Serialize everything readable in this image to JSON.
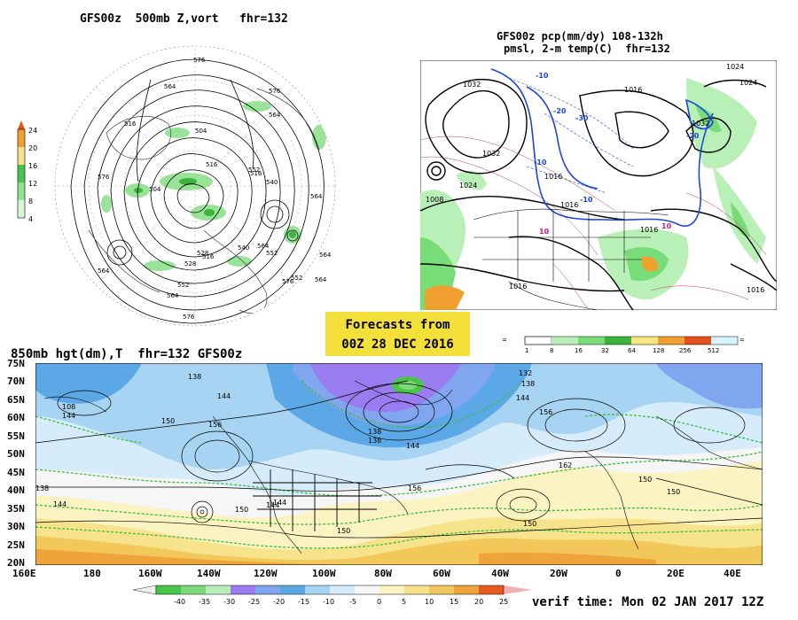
{
  "panel1": {
    "title": "GFS00z  500mb Z,vort   fhr=132",
    "colorbar_labels": [
      "24",
      "20",
      "16",
      "12",
      "8",
      "4"
    ],
    "colorbar_colors": [
      "#e6501e",
      "#f0a030",
      "#f7e08a",
      "#4cc24c",
      "#8fe08f",
      "#d8f5d8"
    ],
    "contour_labels": [
      "576",
      "564",
      "576",
      "516",
      "564",
      "576",
      "504",
      "516",
      "552",
      "540",
      "516",
      "504",
      "564",
      "564",
      "552",
      "564",
      "528",
      "528",
      "516",
      "540",
      "552",
      "564",
      "576",
      "564",
      "552",
      "576",
      "564"
    ]
  },
  "panel2": {
    "title_line1": "GFS00z pcp(mm/dy) 108-132h",
    "title_line2": "pmsl, 2-m temp(C)  fhr=132",
    "pressure_labels": [
      "1032",
      "1024",
      "1016",
      "1024",
      "1032",
      "1016",
      "1008",
      "1016",
      "1024",
      "1032",
      "1016",
      "1016",
      "1016"
    ],
    "temp_labels": [
      "-10",
      "-20",
      "-30",
      "-20",
      "-10",
      "10",
      "-10",
      "10"
    ],
    "colorbar_labels": [
      "1",
      "8",
      "16",
      "32",
      "64",
      "128",
      "256",
      "512"
    ],
    "colorbar_colors": [
      "#ffffff",
      "#b8f0b8",
      "#78dc78",
      "#3cb43c",
      "#f5e680",
      "#f0a030",
      "#e65020",
      "#d8f4ff"
    ]
  },
  "banner": {
    "line1": "Forecasts from",
    "line2": "00Z 28 DEC 2016"
  },
  "panel3": {
    "title": "850mb hgt(dm),T  fhr=132 GFS00z",
    "lat_labels": [
      "75N",
      "70N",
      "65N",
      "60N",
      "55N",
      "50N",
      "45N",
      "40N",
      "35N",
      "30N",
      "25N",
      "20N"
    ],
    "lon_labels": [
      "160E",
      "180",
      "160W",
      "140W",
      "120W",
      "100W",
      "80W",
      "60W",
      "40W",
      "20W",
      "0",
      "20E",
      "40E"
    ],
    "height_labels": [
      "138",
      "108",
      "144",
      "144",
      "150",
      "156",
      "144",
      "138",
      "138",
      "144",
      "132",
      "138",
      "144",
      "156",
      "162",
      "156",
      "150",
      "144",
      "150",
      "138",
      "144",
      "150",
      "150",
      "150"
    ],
    "colorbar_labels": [
      "-40",
      "-35",
      "-30",
      "-25",
      "-20",
      "-15",
      "-10",
      "-5",
      "0",
      "5",
      "10",
      "15",
      "20",
      "25"
    ],
    "colorbar_colors": [
      "#49c649",
      "#7bd97b",
      "#b8ecb8",
      "#9a7cf0",
      "#7fa6ee",
      "#5ca8e6",
      "#a8d4f4",
      "#d6ecfa",
      "#f6f6f6",
      "#fbf3c2",
      "#f7e38c",
      "#f2c85a",
      "#eea43a",
      "#e65a20",
      "#f0b0b0"
    ]
  },
  "verif_time": "verif time: Mon 02 JAN 2017 12Z"
}
